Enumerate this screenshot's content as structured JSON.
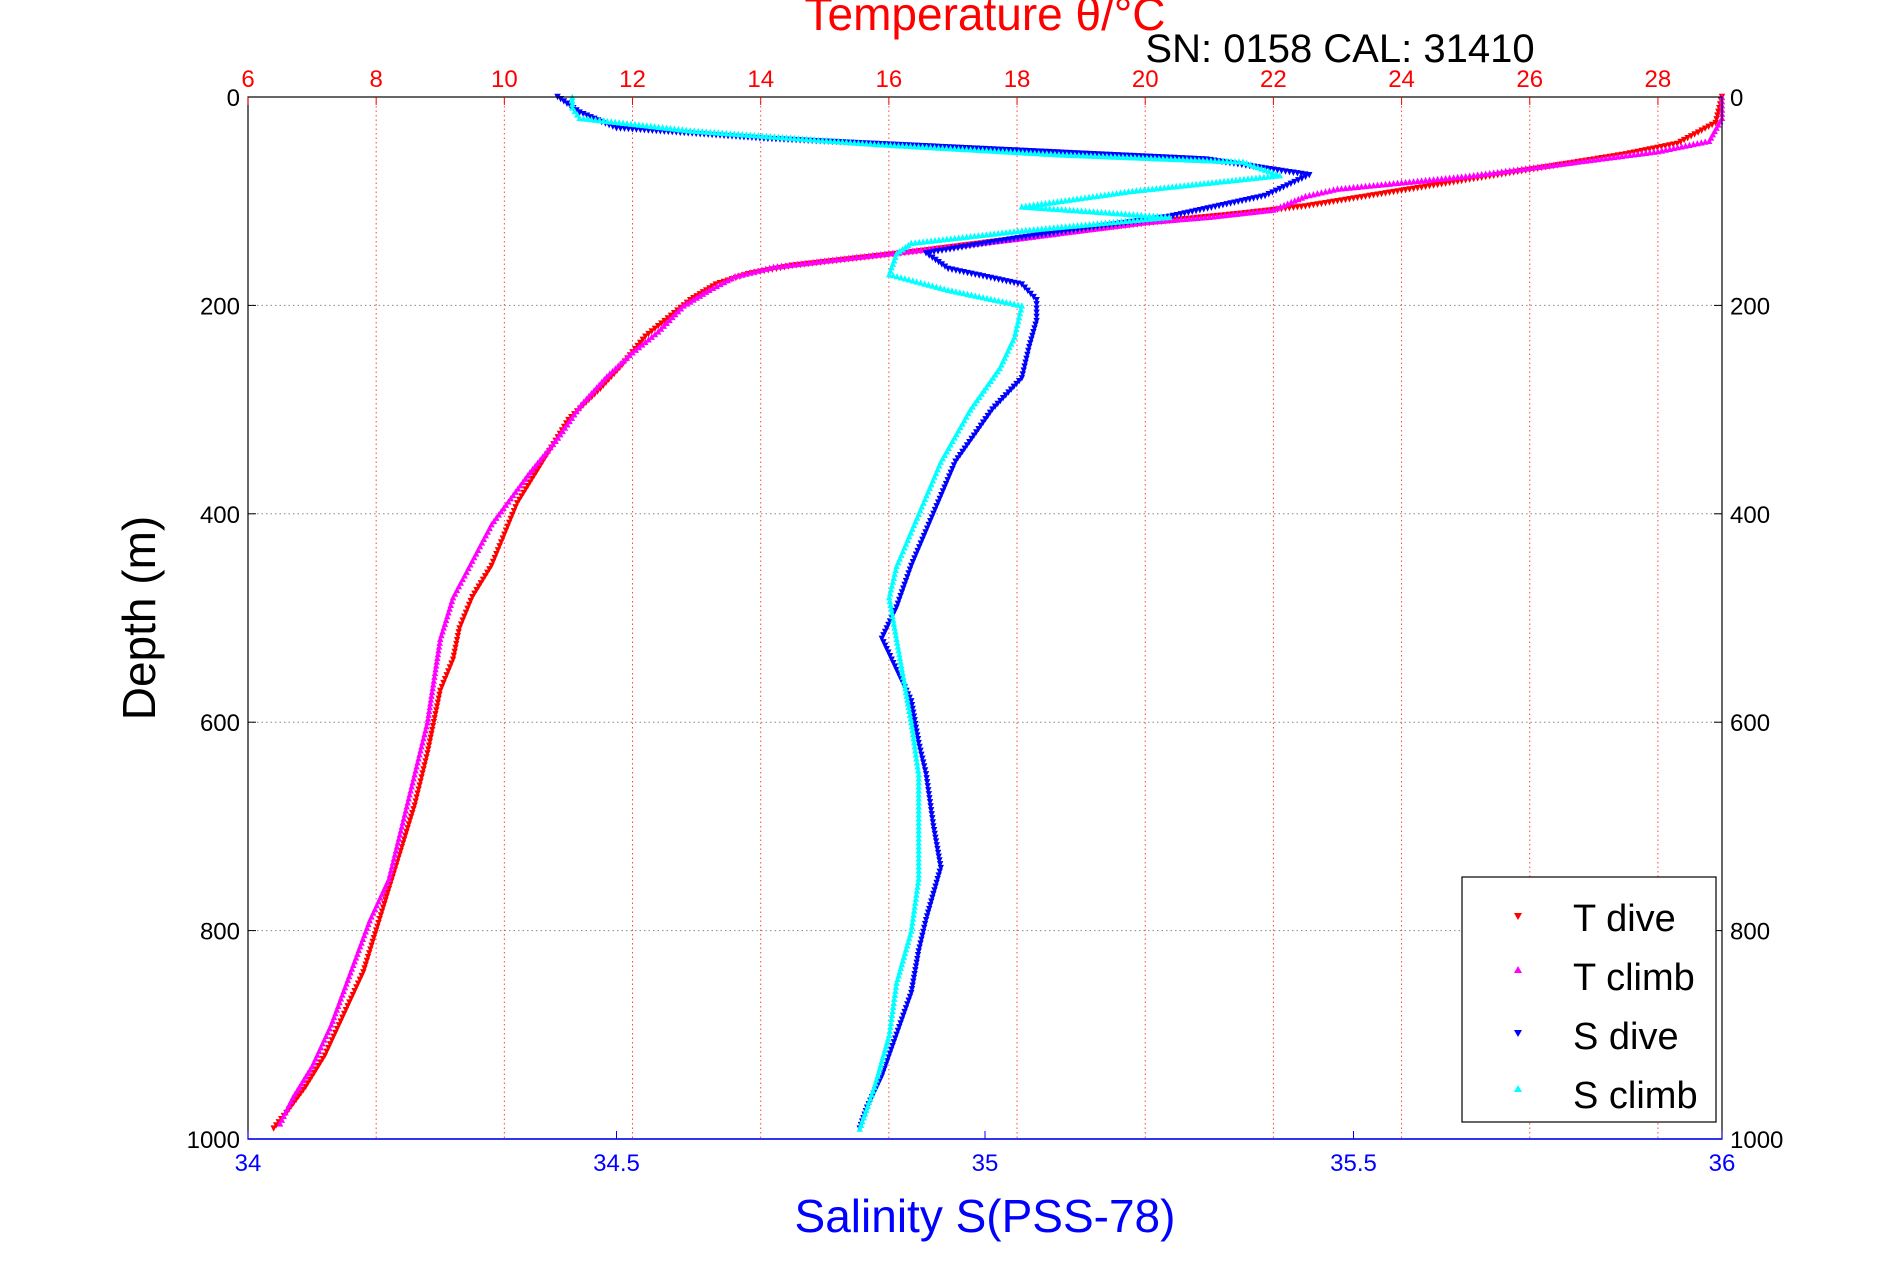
{
  "colors": {
    "temperature_axis": "#ff0000",
    "salinity_axis": "#0000ff",
    "depth_axis": "#000000",
    "t_dive": "#ff0000",
    "t_climb": "#ff00ff",
    "s_dive": "#0000ff",
    "s_climb": "#00ffff",
    "grid": "#888888",
    "temp_grid": "#ff4444"
  },
  "chart_data": {
    "type": "scatter",
    "title": "Temperature θ/°C",
    "subtitle": "SN: 0158  CAL: 31410",
    "ylabel": "Depth (m)",
    "xlabel": "Salinity S(PSS-78)",
    "depth_axis": {
      "range": [
        0,
        1000
      ],
      "inverted": true,
      "ticks": [
        0,
        200,
        400,
        600,
        800,
        1000
      ],
      "tick_labels": [
        "0",
        "200",
        "400",
        "600",
        "800",
        "1000"
      ]
    },
    "temperature_axis": {
      "position": "top",
      "range": [
        6,
        29
      ],
      "ticks": [
        6,
        8,
        10,
        12,
        14,
        16,
        18,
        20,
        22,
        24,
        26,
        28
      ],
      "tick_labels": [
        "6",
        "8",
        "10",
        "12",
        "14",
        "16",
        "18",
        "20",
        "22",
        "24",
        "26",
        "28"
      ],
      "grid": "vertical dotted red"
    },
    "salinity_axis": {
      "position": "bottom",
      "range": [
        34,
        36
      ],
      "ticks": [
        34,
        34.5,
        35,
        35.5,
        36
      ],
      "tick_labels": [
        "34",
        "34.5",
        "35",
        "35.5",
        "36"
      ]
    },
    "depth_grid": "horizontal dotted",
    "legend": {
      "position": "bottom-right",
      "entries": [
        "T dive",
        "T climb",
        "S dive",
        "S climb"
      ]
    },
    "series": [
      {
        "name": "T dive",
        "axis": "temperature",
        "marker": "triangle-down",
        "points": [
          [
            29.0,
            0
          ],
          [
            28.9,
            25
          ],
          [
            28.3,
            45
          ],
          [
            27.5,
            55
          ],
          [
            26.5,
            65
          ],
          [
            25.5,
            75
          ],
          [
            24.5,
            85
          ],
          [
            23.5,
            95
          ],
          [
            22.5,
            105
          ],
          [
            21.5,
            112
          ],
          [
            20.5,
            118
          ],
          [
            19.5,
            125
          ],
          [
            18.5,
            132
          ],
          [
            17.5,
            140
          ],
          [
            16.5,
            148
          ],
          [
            15.5,
            155
          ],
          [
            14.5,
            162
          ],
          [
            13.8,
            170
          ],
          [
            13.3,
            180
          ],
          [
            12.9,
            195
          ],
          [
            12.6,
            210
          ],
          [
            12.2,
            230
          ],
          [
            11.8,
            260
          ],
          [
            11.5,
            280
          ],
          [
            11.0,
            310
          ],
          [
            10.7,
            340
          ],
          [
            10.4,
            370
          ],
          [
            10.2,
            390
          ],
          [
            10.0,
            420
          ],
          [
            9.8,
            450
          ],
          [
            9.5,
            480
          ],
          [
            9.3,
            510
          ],
          [
            9.2,
            540
          ],
          [
            9.0,
            570
          ],
          [
            8.9,
            600
          ],
          [
            8.8,
            630
          ],
          [
            8.6,
            680
          ],
          [
            8.4,
            720
          ],
          [
            8.2,
            760
          ],
          [
            8.0,
            800
          ],
          [
            7.8,
            840
          ],
          [
            7.5,
            880
          ],
          [
            7.2,
            920
          ],
          [
            6.9,
            950
          ],
          [
            6.6,
            975
          ],
          [
            6.4,
            990
          ]
        ]
      },
      {
        "name": "T climb",
        "axis": "temperature",
        "marker": "triangle-up",
        "points": [
          [
            29.0,
            0
          ],
          [
            29.0,
            20
          ],
          [
            28.8,
            42
          ],
          [
            28.0,
            52
          ],
          [
            27.0,
            60
          ],
          [
            26.0,
            68
          ],
          [
            25.0,
            76
          ],
          [
            24.0,
            82
          ],
          [
            23.0,
            88
          ],
          [
            22.5,
            95
          ],
          [
            22.0,
            108
          ],
          [
            21.0,
            115
          ],
          [
            20.0,
            120
          ],
          [
            19.0,
            128
          ],
          [
            18.0,
            136
          ],
          [
            17.0,
            143
          ],
          [
            16.0,
            150
          ],
          [
            15.0,
            157
          ],
          [
            14.2,
            163
          ],
          [
            13.6,
            172
          ],
          [
            13.2,
            185
          ],
          [
            12.8,
            200
          ],
          [
            12.4,
            225
          ],
          [
            12.0,
            245
          ],
          [
            11.6,
            268
          ],
          [
            11.2,
            295
          ],
          [
            10.8,
            330
          ],
          [
            10.4,
            360
          ],
          [
            10.1,
            385
          ],
          [
            9.8,
            410
          ],
          [
            9.5,
            445
          ],
          [
            9.2,
            480
          ],
          [
            9.0,
            520
          ],
          [
            8.9,
            560
          ],
          [
            8.8,
            600
          ],
          [
            8.6,
            650
          ],
          [
            8.4,
            700
          ],
          [
            8.2,
            750
          ],
          [
            7.9,
            790
          ],
          [
            7.6,
            840
          ],
          [
            7.3,
            890
          ],
          [
            7.0,
            930
          ],
          [
            6.7,
            960
          ],
          [
            6.5,
            985
          ]
        ]
      },
      {
        "name": "S dive",
        "axis": "salinity",
        "marker": "triangle-down",
        "points": [
          [
            34.42,
            0
          ],
          [
            34.45,
            15
          ],
          [
            34.5,
            30
          ],
          [
            34.7,
            40
          ],
          [
            35.0,
            50
          ],
          [
            35.3,
            60
          ],
          [
            35.44,
            75
          ],
          [
            35.38,
            95
          ],
          [
            35.25,
            115
          ],
          [
            35.05,
            135
          ],
          [
            34.92,
            150
          ],
          [
            34.95,
            165
          ],
          [
            35.05,
            180
          ],
          [
            35.07,
            195
          ],
          [
            35.07,
            215
          ],
          [
            35.06,
            240
          ],
          [
            35.05,
            270
          ],
          [
            35.01,
            300
          ],
          [
            34.96,
            350
          ],
          [
            34.93,
            400
          ],
          [
            34.9,
            450
          ],
          [
            34.88,
            490
          ],
          [
            34.86,
            520
          ],
          [
            34.88,
            550
          ],
          [
            34.9,
            580
          ],
          [
            34.91,
            620
          ],
          [
            34.92,
            650
          ],
          [
            34.93,
            700
          ],
          [
            34.94,
            740
          ],
          [
            34.92,
            790
          ],
          [
            34.91,
            820
          ],
          [
            34.9,
            860
          ],
          [
            34.88,
            900
          ],
          [
            34.86,
            940
          ],
          [
            34.84,
            970
          ],
          [
            34.83,
            990
          ]
        ]
      },
      {
        "name": "S climb",
        "axis": "salinity",
        "marker": "triangle-up",
        "points": [
          [
            34.44,
            0
          ],
          [
            34.44,
            10
          ],
          [
            34.45,
            20
          ],
          [
            34.6,
            32
          ],
          [
            34.85,
            45
          ],
          [
            35.1,
            55
          ],
          [
            35.35,
            62
          ],
          [
            35.4,
            75
          ],
          [
            35.2,
            90
          ],
          [
            35.05,
            105
          ],
          [
            35.25,
            115
          ],
          [
            35.05,
            128
          ],
          [
            34.9,
            140
          ],
          [
            34.88,
            150
          ],
          [
            34.87,
            170
          ],
          [
            34.95,
            185
          ],
          [
            35.05,
            200
          ],
          [
            35.04,
            230
          ],
          [
            35.02,
            260
          ],
          [
            34.98,
            300
          ],
          [
            34.94,
            350
          ],
          [
            34.91,
            400
          ],
          [
            34.88,
            450
          ],
          [
            34.87,
            480
          ],
          [
            34.88,
            520
          ],
          [
            34.89,
            560
          ],
          [
            34.9,
            600
          ],
          [
            34.91,
            650
          ],
          [
            34.91,
            700
          ],
          [
            34.91,
            750
          ],
          [
            34.9,
            800
          ],
          [
            34.88,
            850
          ],
          [
            34.87,
            900
          ],
          [
            34.85,
            950
          ],
          [
            34.83,
            990
          ]
        ]
      }
    ]
  }
}
